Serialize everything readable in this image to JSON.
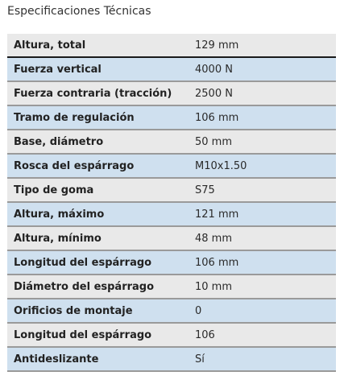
{
  "title": "Especificaciones Técnicas",
  "specs": [
    {
      "label": "Altura, total",
      "value": "129 mm"
    },
    {
      "label": "Fuerza vertical",
      "value": "4000 N"
    },
    {
      "label": "Fuerza contraria (tracción)",
      "value": "2500 N"
    },
    {
      "label": "Tramo de regulación",
      "value": "106 mm"
    },
    {
      "label": "Base, diámetro",
      "value": "50 mm"
    },
    {
      "label": "Rosca del espárrago",
      "value": "M10x1.50"
    },
    {
      "label": "Tipo de goma",
      "value": "S75"
    },
    {
      "label": "Altura, máximo",
      "value": "121 mm"
    },
    {
      "label": "Altura, mínimo",
      "value": "48 mm"
    },
    {
      "label": "Longitud del espárrago",
      "value": "106 mm"
    },
    {
      "label": "Diámetro del espárrago",
      "value": "10 mm"
    },
    {
      "label": "Orificios de montaje",
      "value": "0"
    },
    {
      "label": "Longitud del espárrago",
      "value": "106"
    },
    {
      "label": "Antideslizante",
      "value": "Sí"
    }
  ],
  "colors": {
    "row_odd": "#e9e9e9",
    "row_even": "#cfe0ef"
  }
}
